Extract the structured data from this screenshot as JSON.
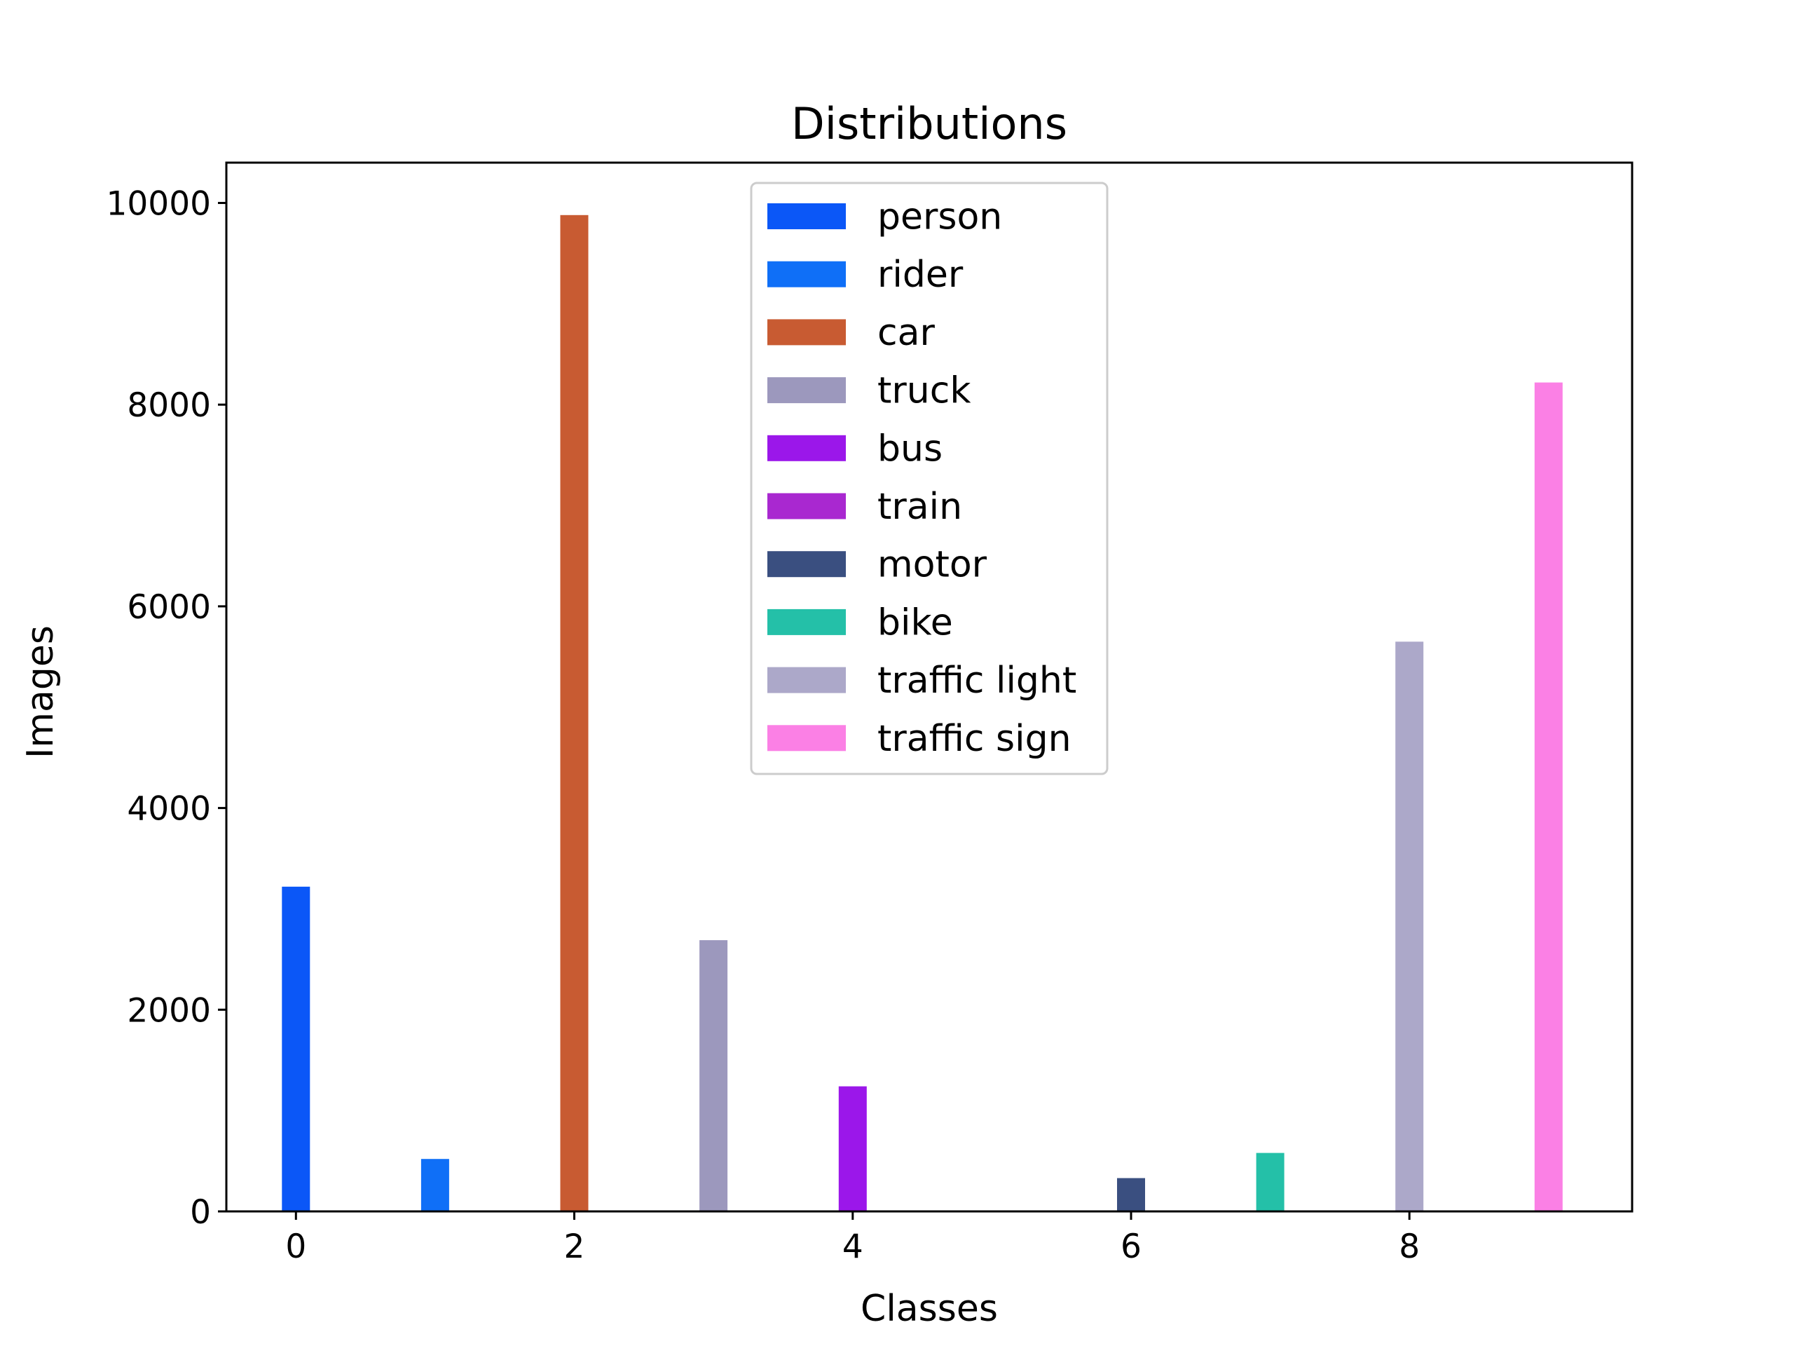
{
  "chart_data": {
    "type": "bar",
    "title": "Distributions",
    "xlabel": "Classes",
    "ylabel": "Images",
    "x": [
      0,
      1,
      2,
      3,
      4,
      5,
      6,
      7,
      8,
      9
    ],
    "series": [
      {
        "name": "person",
        "x": 0,
        "value": 3220,
        "color": "#0b57f7"
      },
      {
        "name": "rider",
        "x": 1,
        "value": 520,
        "color": "#0f6ff7"
      },
      {
        "name": "car",
        "x": 2,
        "value": 9880,
        "color": "#c85b32"
      },
      {
        "name": "truck",
        "x": 3,
        "value": 2690,
        "color": "#9c98bd"
      },
      {
        "name": "bus",
        "x": 4,
        "value": 1240,
        "color": "#9b17ea"
      },
      {
        "name": "train",
        "x": 5,
        "value": 0,
        "color": "#a928d0"
      },
      {
        "name": "motor",
        "x": 6,
        "value": 330,
        "color": "#3a4f80"
      },
      {
        "name": "bike",
        "x": 7,
        "value": 580,
        "color": "#24c0a8"
      },
      {
        "name": "traffic light",
        "x": 8,
        "value": 5650,
        "color": "#aca8c9"
      },
      {
        "name": "traffic sign",
        "x": 9,
        "value": 8220,
        "color": "#fb80e5"
      }
    ],
    "xlim": [
      -0.5,
      9.6
    ],
    "ylim": [
      0,
      10400
    ],
    "xticks": [
      "0",
      "2",
      "4",
      "6",
      "8"
    ],
    "yticks": [
      "0",
      "2000",
      "4000",
      "6000",
      "8000",
      "10000"
    ],
    "grid": false,
    "legend_position": "top-center"
  }
}
